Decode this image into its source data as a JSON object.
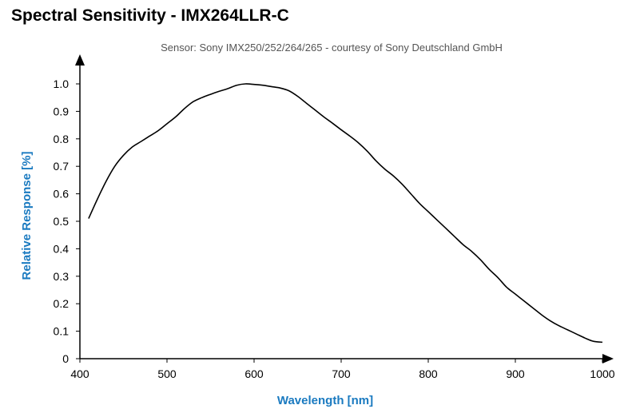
{
  "title": "Spectral Sensitivity - IMX264LLR-C",
  "subtitle": "Sensor: Sony IMX250/252/264/265 - courtesy of Sony Deutschland GmbH",
  "colors": {
    "axis_label": "#1a7ac0",
    "line": "#000000"
  },
  "chart_data": {
    "type": "line",
    "title": "Spectral Sensitivity - IMX264LLR-C",
    "subtitle": "Sensor: Sony IMX250/252/264/265 - courtesy of Sony Deutschland GmbH",
    "xlabel": "Wavelength [nm]",
    "ylabel": "Relative Response [%]",
    "xlim": [
      400,
      1000
    ],
    "ylim": [
      0,
      1.0
    ],
    "xticks": [
      "400",
      "500",
      "600",
      "700",
      "800",
      "900",
      "1000"
    ],
    "yticks": [
      "0",
      "0.1",
      "0.2",
      "0.3",
      "0.4",
      "0.5",
      "0.6",
      "0.7",
      "0.8",
      "0.9",
      "1.0"
    ],
    "grid": false,
    "legend": "none",
    "series": [
      {
        "x": [
          410,
          420,
          430,
          440,
          450,
          460,
          470,
          480,
          490,
          500,
          510,
          520,
          530,
          540,
          550,
          560,
          570,
          580,
          590,
          600,
          610,
          620,
          630,
          640,
          650,
          660,
          670,
          680,
          690,
          700,
          710,
          720,
          730,
          740,
          750,
          760,
          770,
          780,
          790,
          800,
          810,
          820,
          830,
          840,
          850,
          860,
          870,
          880,
          890,
          900,
          910,
          920,
          930,
          940,
          950,
          960,
          970,
          980,
          990,
          1000
        ],
        "values": [
          0.51,
          0.58,
          0.645,
          0.7,
          0.74,
          0.77,
          0.79,
          0.81,
          0.83,
          0.855,
          0.88,
          0.91,
          0.935,
          0.95,
          0.962,
          0.973,
          0.983,
          0.995,
          1.0,
          0.998,
          0.995,
          0.99,
          0.985,
          0.975,
          0.955,
          0.93,
          0.905,
          0.88,
          0.857,
          0.833,
          0.81,
          0.785,
          0.755,
          0.72,
          0.69,
          0.665,
          0.635,
          0.6,
          0.565,
          0.535,
          0.505,
          0.475,
          0.445,
          0.415,
          0.39,
          0.36,
          0.325,
          0.295,
          0.26,
          0.235,
          0.21,
          0.185,
          0.16,
          0.138,
          0.12,
          0.105,
          0.09,
          0.075,
          0.063,
          0.06
        ]
      }
    ]
  }
}
